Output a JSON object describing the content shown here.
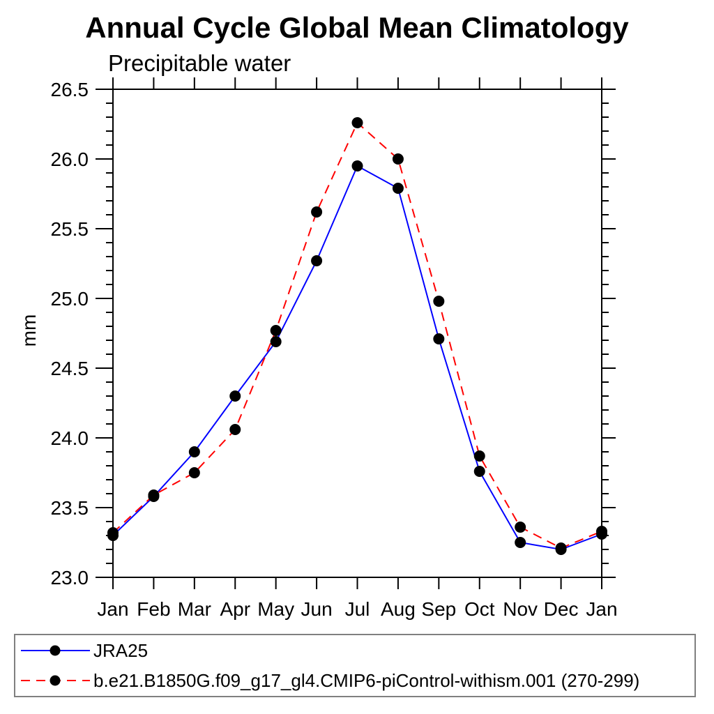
{
  "page": {
    "background": "#ffffff"
  },
  "chart_data": {
    "type": "line",
    "title": "Annual Cycle Global Mean Climatology",
    "subtitle": "Precipitable water",
    "ylabel": "mm",
    "xlabel": "",
    "categories": [
      "Jan",
      "Feb",
      "Mar",
      "Apr",
      "May",
      "Jun",
      "Jul",
      "Aug",
      "Sep",
      "Oct",
      "Nov",
      "Dec",
      "Jan"
    ],
    "ylim": [
      23.0,
      26.5
    ],
    "ytick_major_step": 0.5,
    "ytick_minor_step": 0.1,
    "ytick_labels": [
      "23.0",
      "23.5",
      "24.0",
      "24.5",
      "25.0",
      "25.5",
      "26.0",
      "26.5"
    ],
    "grid": false,
    "legend_position": "bottom-outside",
    "axis_color": "#000000",
    "marker_color": "#000000",
    "series": [
      {
        "name": "JRA25",
        "color": "#0000ff",
        "line_style": "solid",
        "marker": "circle",
        "values": [
          23.3,
          23.58,
          23.9,
          24.3,
          24.69,
          25.27,
          25.95,
          25.79,
          24.71,
          23.76,
          23.25,
          23.2,
          23.31
        ]
      },
      {
        "name": "b.e21.B1850G.f09_g17_gl4.CMIP6-piControl-withism.001 (270-299)",
        "color": "#ff0000",
        "line_style": "dashed",
        "marker": "circle",
        "values": [
          23.32,
          23.59,
          23.75,
          24.06,
          24.77,
          25.62,
          26.26,
          26.0,
          24.98,
          23.87,
          23.36,
          23.21,
          23.33
        ]
      }
    ]
  }
}
